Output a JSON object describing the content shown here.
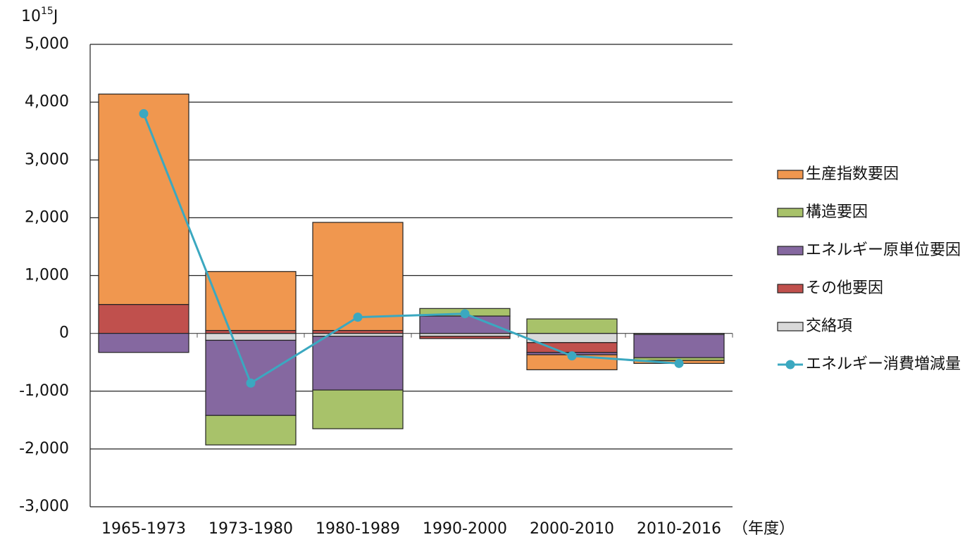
{
  "chart_data": {
    "type": "bar",
    "stacked": true,
    "y_unit": {
      "base": "10",
      "exponent": "15",
      "unit": "J"
    },
    "x_label": "（年度）",
    "categories": [
      "1965-1973",
      "1973-1980",
      "1980-1989",
      "1990-2000",
      "2000-2010",
      "2010-2016"
    ],
    "series": [
      {
        "name": "生産指数要因",
        "color": "#f0974f",
        "values": [
          3640,
          1020,
          1870,
          0,
          -260,
          -50
        ]
      },
      {
        "name": "構造要因",
        "color": "#a8c26a",
        "values": [
          0,
          -510,
          -670,
          130,
          250,
          -50
        ]
      },
      {
        "name": "エネルギー原単位要因",
        "color": "#8568a0",
        "values": [
          -330,
          -1300,
          -930,
          300,
          -40,
          -400
        ]
      },
      {
        "name": "その他要因",
        "color": "#c0504d",
        "values": [
          500,
          50,
          50,
          -40,
          -170,
          0
        ]
      },
      {
        "name": "交絡項",
        "color": "#d9d9d9",
        "values": [
          0,
          -120,
          -50,
          -50,
          -160,
          -20
        ]
      }
    ],
    "line": {
      "name": "エネルギー消費増減量",
      "color": "#3ba8c0",
      "values": [
        3800,
        -860,
        280,
        340,
        -390,
        -520
      ]
    },
    "stack_order": [
      4,
      3,
      2,
      1,
      0
    ],
    "ylim": [
      -3000,
      5000
    ],
    "yticks": [
      {
        "value": -3000,
        "label": "-3,000"
      },
      {
        "value": -2000,
        "label": "-2,000"
      },
      {
        "value": -1000,
        "label": "-1,000"
      },
      0,
      {
        "value": 1000,
        "label": "1,000"
      },
      {
        "value": 2000,
        "label": "2,000"
      },
      {
        "value": 3000,
        "label": "3,000"
      },
      {
        "value": 4000,
        "label": "4,000"
      },
      {
        "value": 5000,
        "label": "5,000"
      }
    ],
    "grid": true
  }
}
